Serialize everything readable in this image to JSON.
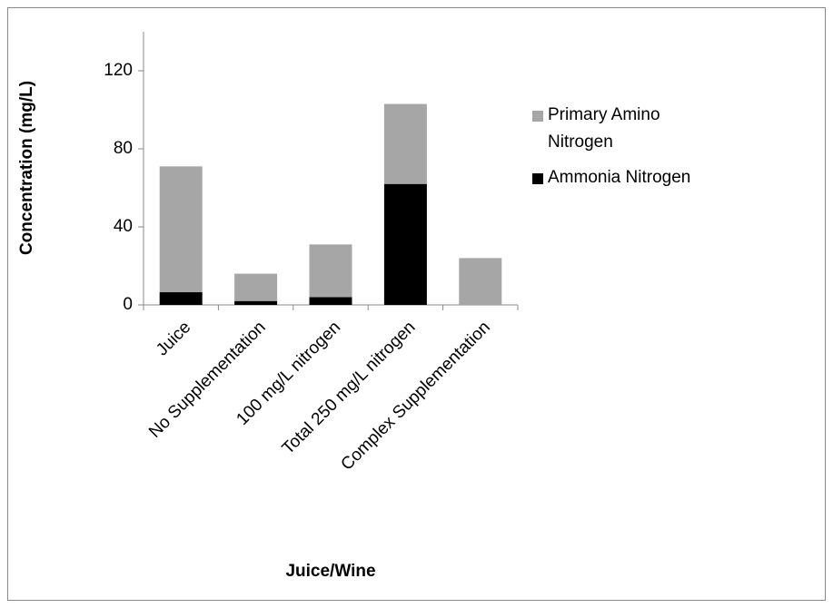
{
  "chart_data": {
    "type": "stacked_bar",
    "x_label": "Juice/Wine",
    "y_label": "Concentration (mg/L)",
    "categories": [
      "Juice",
      "No Supplementation",
      "100 mg/L nitrogen",
      "Total 250 mg/L nitrogen",
      "Complex Supplementation"
    ],
    "series": [
      {
        "name": "Primary Amino Nitrogen",
        "color": "#a6a6a6",
        "values": [
          64.5,
          14,
          27,
          41,
          24
        ]
      },
      {
        "name": "Ammonia Nitrogen",
        "color": "#000000",
        "values": [
          6.5,
          2,
          4,
          62,
          0
        ]
      }
    ],
    "ylim": [
      0,
      140
    ],
    "yticks": [
      0,
      40,
      80,
      120
    ],
    "grid": false,
    "legend": "right"
  }
}
